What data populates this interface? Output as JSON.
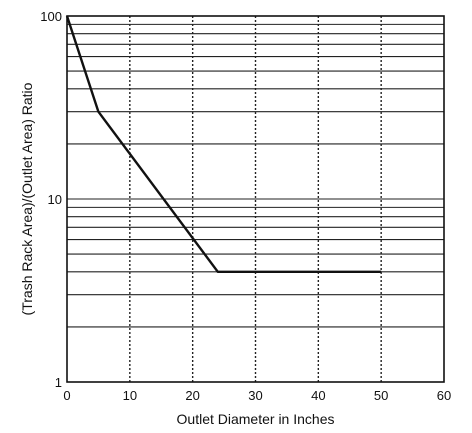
{
  "chart_data": {
    "type": "line",
    "title": "",
    "xlabel": "Outlet Diameter in Inches",
    "ylabel": "(Trash Rack Area)/(Outlet Area) Ratio",
    "xlim": [
      0,
      60
    ],
    "ylim": [
      1,
      100
    ],
    "yscale": "log",
    "grid": true,
    "x_ticks": [
      0,
      10,
      20,
      30,
      40,
      50,
      60
    ],
    "y_ticks": [
      1,
      10,
      100
    ],
    "series": [
      {
        "x": [
          0,
          5,
          24,
          50
        ],
        "y": [
          100,
          30,
          4,
          4
        ]
      }
    ]
  }
}
